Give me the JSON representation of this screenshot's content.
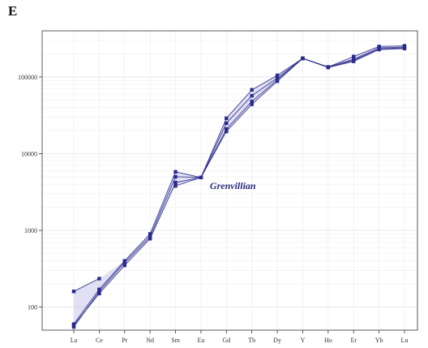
{
  "panel_label": "E",
  "chart_data": {
    "type": "line",
    "yscale": "log",
    "ylim": [
      50,
      400000
    ],
    "yticks": [
      {
        "value": 100,
        "label": "100"
      },
      {
        "value": 1000,
        "label": "1000"
      },
      {
        "value": 10000,
        "label": "10000"
      },
      {
        "value": 100000,
        "label": "100000"
      }
    ],
    "categories": [
      "La",
      "Ce",
      "Pr",
      "Nd",
      "Sm",
      "Eu",
      "Gd",
      "Tb",
      "Dy",
      "Y",
      "Ho",
      "Er",
      "Yb",
      "Lu"
    ],
    "annotation": "Grenvillian",
    "grid": true,
    "colors": {
      "line": "#2b2b8c",
      "fill": "#c9c9ea",
      "axis": "#333333",
      "grid": "#e4e4ef"
    },
    "series": [
      {
        "values": [
          60,
          170,
          400,
          900,
          5800,
          4900,
          29000,
          68000,
          105000,
          175000,
          135000,
          185000,
          250000,
          255000
        ]
      },
      {
        "values": [
          55,
          160,
          380,
          830,
          5000,
          4900,
          25000,
          57000,
          97000,
          175000,
          135000,
          170000,
          240000,
          245000
        ]
      },
      {
        "values": [
          58,
          150,
          350,
          780,
          4200,
          4900,
          21000,
          48000,
          92000,
          175000,
          134000,
          165000,
          232000,
          240000
        ]
      },
      {
        "values": [
          160,
          235,
          null,
          null,
          null,
          null,
          null,
          null,
          null,
          null,
          null,
          null,
          null,
          null
        ]
      },
      {
        "values": [
          null,
          null,
          null,
          null,
          3800,
          4900,
          19500,
          44000,
          88000,
          175000,
          133000,
          160000,
          228000,
          235000
        ]
      }
    ]
  }
}
